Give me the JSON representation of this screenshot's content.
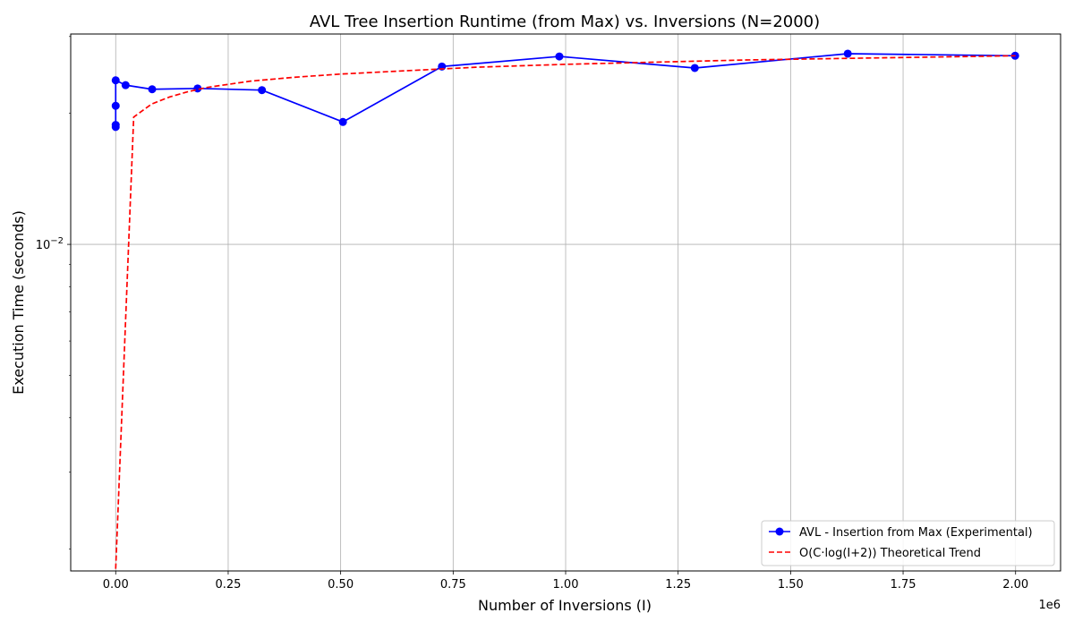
{
  "chart_data": {
    "type": "line",
    "title": "AVL Tree Insertion Runtime (from Max) vs. Inversions (N=2000)",
    "xlabel": "Number of Inversions (I)",
    "ylabel": "Execution Time (seconds)",
    "x_offset_label": "1e6",
    "x_scale": "linear",
    "y_scale": "log",
    "xlim": [
      -100000,
      2100000
    ],
    "ylim": [
      0.00178,
      0.0304
    ],
    "grid": true,
    "legend_position": "lower right",
    "x_ticks": [
      {
        "value": 0,
        "label": "0.00"
      },
      {
        "value": 250000,
        "label": "0.25"
      },
      {
        "value": 500000,
        "label": "0.50"
      },
      {
        "value": 750000,
        "label": "0.75"
      },
      {
        "value": 1000000,
        "label": "1.00"
      },
      {
        "value": 1250000,
        "label": "1.25"
      },
      {
        "value": 1500000,
        "label": "1.50"
      },
      {
        "value": 1750000,
        "label": "1.75"
      },
      {
        "value": 2000000,
        "label": "2.00"
      }
    ],
    "y_ticks": [
      {
        "value": 0.01,
        "base": "10",
        "exponent": "−2"
      }
    ],
    "series": [
      {
        "name": "AVL - Insertion from Max (Experimental)",
        "color": "#0000ff",
        "line_style": "solid",
        "marker": "circle",
        "x": [
          0,
          0,
          0,
          0,
          22000,
          81000,
          182000,
          325000,
          505000,
          725000,
          986000,
          1287000,
          1627000,
          1999000
        ],
        "y": [
          0.0188,
          0.0186,
          0.0208,
          0.0238,
          0.0232,
          0.0227,
          0.0228,
          0.0226,
          0.0191,
          0.0256,
          0.027,
          0.0254,
          0.0274,
          0.0271
        ]
      },
      {
        "name": "O(C·log(I+2)) Theoretical Trend",
        "color": "#ff0000",
        "line_style": "dashed",
        "marker": "none",
        "x": [
          0,
          40000,
          80000,
          120000,
          160000,
          200000,
          300000,
          400000,
          500000,
          600000,
          700000,
          800000,
          900000,
          1000000,
          1200000,
          1400000,
          1600000,
          1800000,
          2000000
        ],
        "y": [
          0.0018,
          0.0196,
          0.021,
          0.0218,
          0.0224,
          0.0229,
          0.0237,
          0.0242,
          0.0246,
          0.0249,
          0.0252,
          0.0255,
          0.0257,
          0.0259,
          0.0262,
          0.0265,
          0.0267,
          0.0269,
          0.0271
        ]
      }
    ]
  }
}
